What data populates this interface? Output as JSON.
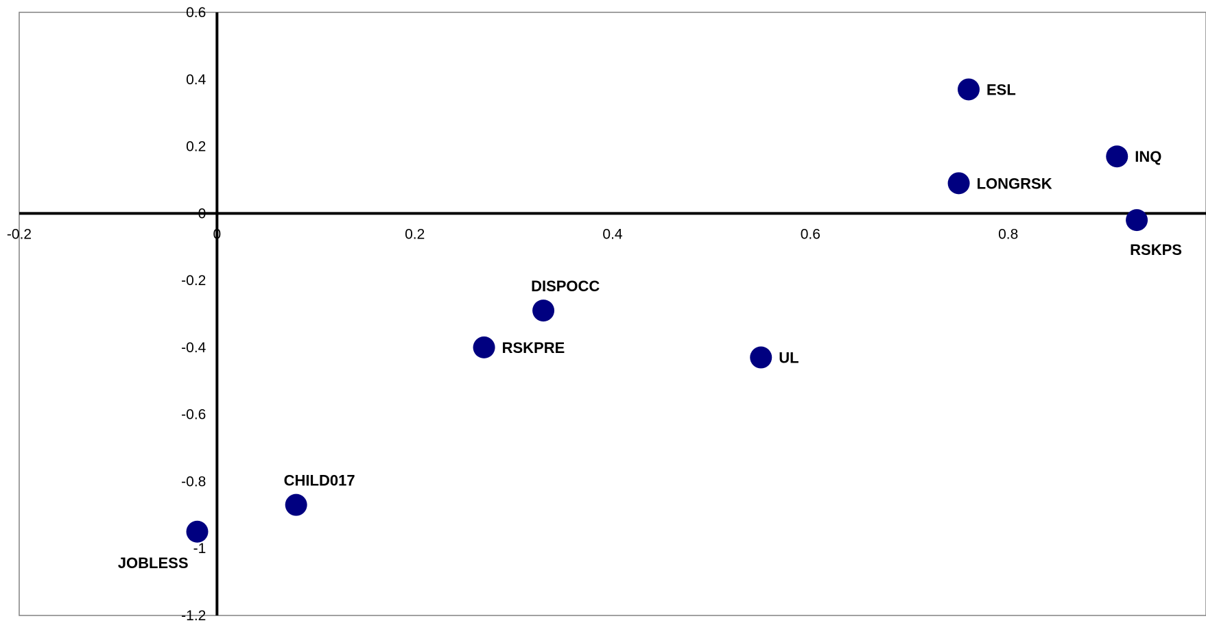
{
  "chart_data": {
    "type": "scatter",
    "title": "",
    "xlabel": "",
    "ylabel": "",
    "xlim": [
      -0.2,
      1.0
    ],
    "ylim": [
      -1.2,
      0.6
    ],
    "x_ticks": [
      "-0.2",
      "0",
      "0.2",
      "0.4",
      "0.6",
      "0.8"
    ],
    "y_ticks": [
      "0.6",
      "0.4",
      "0.2",
      "0",
      "-0.2",
      "-0.4",
      "-0.6",
      "-0.8",
      "-1",
      "-1.2"
    ],
    "grid": false,
    "legend": "none",
    "marker_color": "#000080",
    "points": [
      {
        "label": "ESL",
        "x": 0.76,
        "y": 0.37,
        "label_side": "right"
      },
      {
        "label": "INQ",
        "x": 0.91,
        "y": 0.17,
        "label_side": "right"
      },
      {
        "label": "LONGRSK",
        "x": 0.75,
        "y": 0.09,
        "label_side": "right"
      },
      {
        "label": "RSKPS",
        "x": 0.93,
        "y": -0.02,
        "label_side": "below"
      },
      {
        "label": "DISPOCC",
        "x": 0.33,
        "y": -0.29,
        "label_side": "above"
      },
      {
        "label": "RSKPRE",
        "x": 0.27,
        "y": -0.4,
        "label_side": "right"
      },
      {
        "label": "UL",
        "x": 0.55,
        "y": -0.43,
        "label_side": "right"
      },
      {
        "label": "CHILD017",
        "x": 0.08,
        "y": -0.87,
        "label_side": "above"
      },
      {
        "label": "JOBLESS",
        "x": -0.02,
        "y": -0.95,
        "label_side": "below-left"
      }
    ]
  }
}
